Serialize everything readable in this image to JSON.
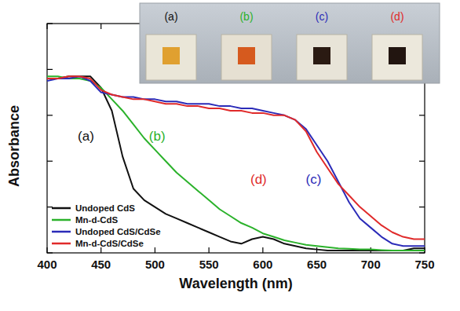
{
  "chart_data": {
    "type": "line",
    "x_label": "Wavelength (nm)",
    "y_label": "Absorbance",
    "x": [
      400,
      410,
      420,
      430,
      440,
      450,
      460,
      470,
      480,
      490,
      500,
      510,
      520,
      530,
      540,
      550,
      560,
      570,
      580,
      590,
      600,
      610,
      620,
      630,
      640,
      650,
      660,
      670,
      680,
      690,
      700,
      710,
      720,
      730,
      740,
      750
    ],
    "series": [
      {
        "name": "Undoped CdS",
        "color": "#111111",
        "values": [
          0.76,
          0.76,
          0.77,
          0.77,
          0.77,
          0.72,
          0.62,
          0.42,
          0.28,
          0.23,
          0.2,
          0.17,
          0.15,
          0.13,
          0.11,
          0.09,
          0.07,
          0.05,
          0.04,
          0.06,
          0.07,
          0.06,
          0.04,
          0.03,
          0.02,
          0.015,
          0.01,
          0.01,
          0.01,
          0.01,
          0.01,
          0.01,
          0.01,
          0.01,
          0.02,
          0.02
        ]
      },
      {
        "name": "Mn-d-CdS",
        "color": "#2bb22b",
        "values": [
          0.77,
          0.77,
          0.76,
          0.76,
          0.75,
          0.72,
          0.67,
          0.62,
          0.56,
          0.5,
          0.45,
          0.4,
          0.35,
          0.31,
          0.27,
          0.23,
          0.19,
          0.16,
          0.13,
          0.11,
          0.085,
          0.07,
          0.055,
          0.045,
          0.035,
          0.03,
          0.025,
          0.02,
          0.018,
          0.015,
          0.015,
          0.012,
          0.01,
          0.01,
          0.01,
          0.01
        ]
      },
      {
        "name": "Undoped CdS/CdSe",
        "color": "#2b2bb8",
        "values": [
          0.75,
          0.76,
          0.76,
          0.77,
          0.75,
          0.7,
          0.69,
          0.68,
          0.68,
          0.67,
          0.67,
          0.66,
          0.66,
          0.65,
          0.65,
          0.65,
          0.64,
          0.64,
          0.63,
          0.63,
          0.62,
          0.61,
          0.6,
          0.58,
          0.54,
          0.47,
          0.4,
          0.31,
          0.22,
          0.15,
          0.11,
          0.07,
          0.04,
          0.03,
          0.03,
          0.03
        ]
      },
      {
        "name": "Mn-d-CdS/CdSe",
        "color": "#e02a2a",
        "values": [
          0.76,
          0.76,
          0.77,
          0.77,
          0.76,
          0.71,
          0.69,
          0.68,
          0.67,
          0.67,
          0.66,
          0.65,
          0.65,
          0.64,
          0.64,
          0.63,
          0.63,
          0.62,
          0.62,
          0.61,
          0.61,
          0.6,
          0.6,
          0.58,
          0.53,
          0.44,
          0.37,
          0.3,
          0.25,
          0.2,
          0.16,
          0.12,
          0.09,
          0.07,
          0.06,
          0.06
        ]
      }
    ],
    "xlim": [
      400,
      750
    ],
    "xticks": [
      400,
      450,
      500,
      550,
      600,
      650,
      700,
      750
    ],
    "ylim": [
      0,
      1
    ],
    "yticks": [
      0,
      0.2,
      0.4,
      0.6,
      0.8,
      1
    ],
    "tick_labels": "x",
    "legend": "lower left",
    "annotations": [
      {
        "text": "(a)",
        "x": 436,
        "y": 0.49,
        "color": "#111111"
      },
      {
        "text": "(b)",
        "x": 502,
        "y": 0.49,
        "color": "#2bb22b"
      },
      {
        "text": "(d)",
        "x": 596,
        "y": 0.3,
        "color": "#e02a2a"
      },
      {
        "text": "(c)",
        "x": 647,
        "y": 0.3,
        "color": "#2b2bb8"
      }
    ],
    "inset_labels": [
      "(a)",
      "(b)",
      "(c)",
      "(d)"
    ]
  }
}
